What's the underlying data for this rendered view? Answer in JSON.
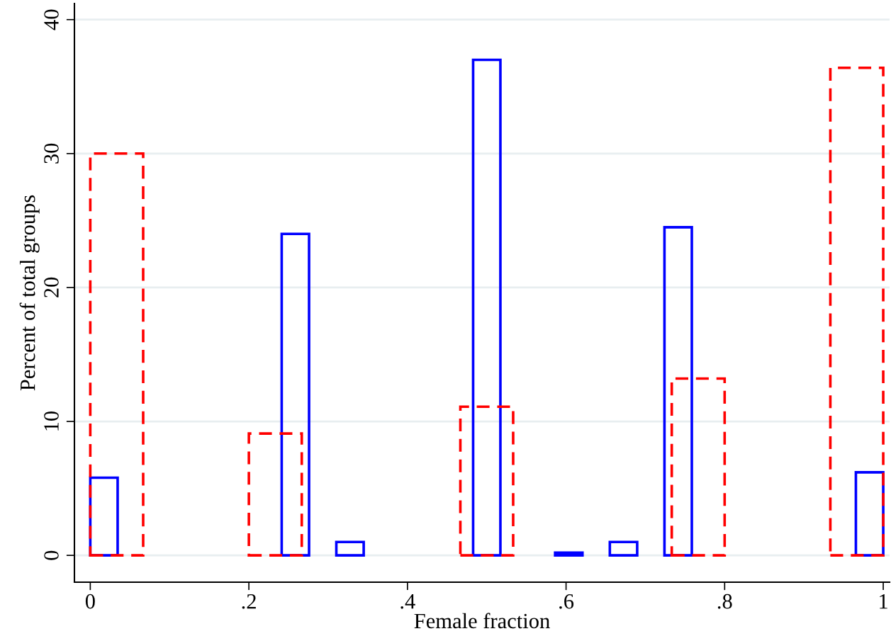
{
  "chart_data": {
    "type": "histogram",
    "xlabel": "Female fraction",
    "ylabel": "Percent of total groups",
    "bins": [
      0,
      0.0345,
      0.069,
      0.1034,
      0.1379,
      0.1724,
      0.2069,
      0.2414,
      0.2759,
      0.3103,
      0.3448,
      0.3793,
      0.4138,
      0.4483,
      0.4828,
      0.5172,
      0.5517,
      0.5862,
      0.6207,
      0.6552,
      0.6897,
      0.7241,
      0.7586,
      0.7931,
      0.8276,
      0.8621,
      0.8966,
      0.931,
      0.9655,
      1
    ],
    "series": [
      {
        "color": "#0000ff",
        "line_style": "solid",
        "values": [
          5.8,
          null,
          null,
          null,
          null,
          null,
          null,
          24,
          null,
          1,
          null,
          null,
          null,
          null,
          37,
          null,
          null,
          0.2,
          null,
          1,
          null,
          24.5,
          null,
          null,
          null,
          null,
          null,
          null,
          6.2
        ]
      },
      {
        "color": "#ff0000",
        "line_style": "dashed",
        "bins": [
          0,
          0.0667,
          0.1333,
          0.2,
          0.2667,
          0.3333,
          0.4,
          0.4667,
          0.5333,
          0.6,
          0.6667,
          0.7333,
          0.8,
          0.8667,
          0.9333,
          1
        ],
        "values": [
          30,
          null,
          null,
          9.1,
          null,
          null,
          null,
          11.1,
          null,
          null,
          null,
          13.2,
          null,
          null,
          36.4
        ]
      }
    ],
    "xlim": [
      -0.02,
      1.008
    ],
    "ylim": [
      -2,
      41.2
    ],
    "xticks": [
      0,
      {
        "value": 0.2,
        "label": ".2"
      },
      {
        "value": 0.4,
        "label": ".4"
      },
      {
        "value": 0.6,
        "label": ".6"
      },
      {
        "value": 0.8,
        "label": ".8"
      },
      1
    ],
    "yticks": [
      0,
      10,
      20,
      30,
      40
    ],
    "grid": "y"
  }
}
